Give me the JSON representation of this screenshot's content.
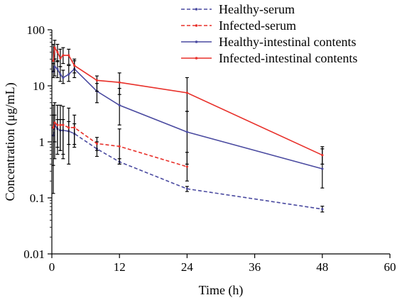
{
  "chart_data": {
    "type": "line",
    "xlabel": "Time (h)",
    "ylabel": "Concentration (μg/mL)",
    "xlim": [
      0,
      60
    ],
    "ylim": [
      0.01,
      100
    ],
    "yscale": "log",
    "x_ticks": [
      0,
      12,
      24,
      36,
      48,
      60
    ],
    "y_ticks": [
      0.01,
      0.1,
      1,
      10,
      100
    ],
    "x_tick_labels": [
      "0",
      "12",
      "24",
      "36",
      "48",
      "60"
    ],
    "y_tick_labels": [
      "0.01",
      "0.1",
      "1",
      "10",
      "100"
    ],
    "grid": false,
    "legend_position": "top-right",
    "series": [
      {
        "name": "Healthy-serum",
        "color": "#4a4aa0",
        "dash": "dashed",
        "x": [
          0.25,
          0.5,
          1,
          1.5,
          2,
          3,
          4,
          8,
          12,
          24,
          48
        ],
        "y": [
          1.3,
          2.0,
          1.7,
          1.6,
          1.6,
          1.55,
          1.4,
          0.75,
          0.44,
          0.145,
          0.063
        ],
        "err_low": [
          0.38,
          1.0,
          0.8,
          0.7,
          0.6,
          0.9,
          0.8,
          0.55,
          0.4,
          0.13,
          0.056
        ],
        "err_high": [
          3.0,
          3.0,
          2.5,
          2.5,
          2.5,
          2.3,
          2.1,
          1.0,
          0.5,
          0.16,
          0.071
        ]
      },
      {
        "name": "Infected-serum",
        "color": "#e8302a",
        "dash": "dashed",
        "x": [
          0.25,
          0.5,
          1,
          1.5,
          2,
          3,
          4,
          8,
          12,
          24
        ],
        "y": [
          1.8,
          2.2,
          2.0,
          2.0,
          2.0,
          1.8,
          1.8,
          0.93,
          0.83,
          0.36
        ],
        "err_low": [
          0.12,
          0.5,
          0.6,
          0.7,
          0.5,
          0.4,
          0.9,
          0.7,
          0.4,
          0.2
        ],
        "err_high": [
          4.5,
          5.0,
          4.5,
          4.5,
          4.3,
          4.0,
          3.0,
          1.2,
          1.7,
          0.65
        ]
      },
      {
        "name": "Healthy-intestinal contents",
        "color": "#4a4aa0",
        "dash": "solid",
        "x": [
          0.25,
          0.5,
          1,
          1.5,
          2,
          3,
          4,
          8,
          12,
          24,
          48
        ],
        "y": [
          18,
          22,
          20,
          16,
          14,
          16,
          20,
          8,
          4.5,
          1.5,
          0.33
        ],
        "err_low": [
          14,
          15,
          14,
          12,
          11,
          12,
          14,
          5,
          2.0,
          0.4,
          0.15
        ],
        "err_high": [
          25,
          30,
          28,
          22,
          19,
          23,
          28,
          11,
          9,
          3.5,
          0.75
        ]
      },
      {
        "name": "Infected-intestinal contents",
        "color": "#e8302a",
        "dash": "solid",
        "x": [
          0.25,
          0.5,
          1,
          1.5,
          2,
          3,
          4,
          8,
          12,
          24,
          48
        ],
        "y": [
          28,
          48,
          40,
          31,
          35,
          35,
          23,
          12.5,
          11.5,
          7.5,
          0.58
        ],
        "err_low": [
          18,
          30,
          27,
          22,
          25,
          24,
          17,
          8,
          7,
          3.5,
          0.4
        ],
        "err_high": [
          55,
          65,
          55,
          45,
          48,
          45,
          30,
          15,
          17,
          14,
          0.82
        ]
      }
    ]
  }
}
